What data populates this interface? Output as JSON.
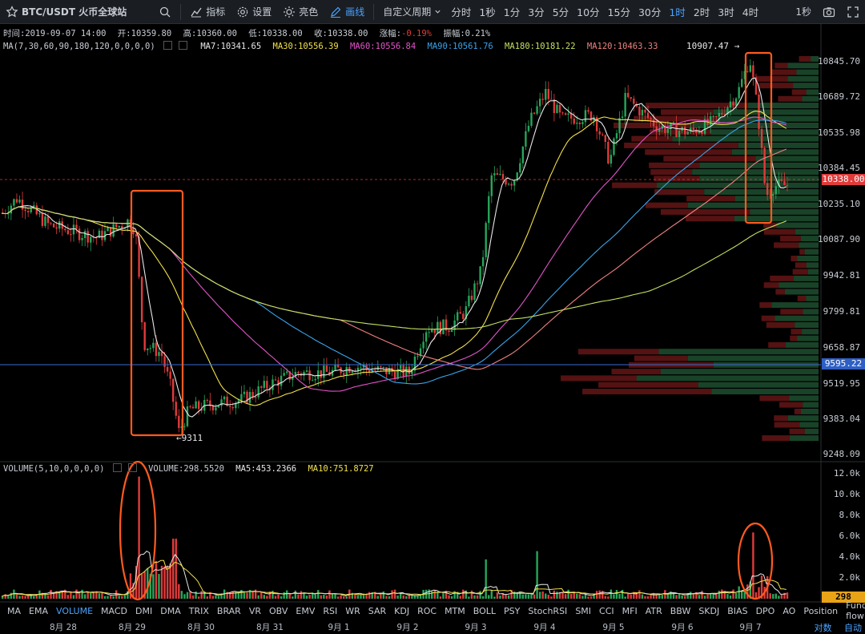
{
  "toolbar": {
    "pair": "BTC/USDT 火币全球站",
    "indicators": "指标",
    "settings": "设置",
    "brightness": "亮色",
    "drawing": "画线",
    "custom_period": "自定义周期",
    "periods": [
      "分时",
      "1秒",
      "1分",
      "3分",
      "5分",
      "10分",
      "15分",
      "30分",
      "1时",
      "2时",
      "3时",
      "4时"
    ],
    "active_period": "1时",
    "right_period": "1秒"
  },
  "ohlc": {
    "time": "时间:2019-09-07 14:00",
    "open": "开:10359.80",
    "high": "高:10360.00",
    "low": "低:10338.00",
    "close": "收:10338.00",
    "change": "-0.19%",
    "change_label": "涨幅:",
    "amplitude": "振幅:0.21%"
  },
  "ma_row": {
    "params": "MA(7,30,60,90,180,120,0,0,0,0)",
    "ma7": "MA7:10341.65",
    "ma30": "MA30:10556.39",
    "ma60": "MA60:10556.84",
    "ma90": "MA90:10561.76",
    "ma180": "MA180:10181.22",
    "ma120": "MA120:10463.33"
  },
  "volume_row": {
    "params": "VOLUME(5,10,0,0,0,0)",
    "volume": "VOLUME:298.5520",
    "ma5": "MA5:453.2366",
    "ma10": "MA10:751.8727"
  },
  "price_axis": [
    "10845.70",
    "10689.72",
    "10535.98",
    "10384.45",
    "10235.10",
    "10087.90",
    "9942.81",
    "9799.81",
    "9658.87",
    "9519.95",
    "9383.04",
    "9248.09"
  ],
  "current_price": "10338.00",
  "line_price": "9595.22",
  "high_marker": "10907.47 →",
  "low_marker": "←9311",
  "volume_axis": [
    "12.0k",
    "10.0k",
    "8.0k",
    "6.0k",
    "4.0k",
    "2.0k"
  ],
  "volume_current": "298",
  "indicators_bar": [
    "MA",
    "EMA",
    "VOLUME",
    "MACD",
    "DMI",
    "DMA",
    "TRIX",
    "BRAR",
    "VR",
    "OBV",
    "EMV",
    "RSI",
    "WR",
    "SAR",
    "KDJ",
    "ROC",
    "MTM",
    "BOLL",
    "PSY",
    "StochRSI",
    "SMI",
    "CCI",
    "MFI",
    "ATR",
    "BBW",
    "SKDJ",
    "BIAS",
    "DPO",
    "AO",
    "Position",
    "Fund-flow"
  ],
  "active_indicator": "VOLUME",
  "dates": [
    "8月 28",
    "8月 29",
    "8月 30",
    "8月 31",
    "9月 1",
    "9月 2",
    "9月 3",
    "9月 4",
    "9月 5",
    "9月 6",
    "9月 7"
  ],
  "bottom_right": {
    "log": "对数",
    "auto": "自动"
  },
  "colors": {
    "up": "#26a65b",
    "down": "#e03b3b",
    "ma7": "#e8e8e8",
    "ma30": "#f2e14a",
    "ma60": "#e055c8",
    "ma90": "#3aa4ea",
    "ma180": "#c4e060",
    "ma120": "#f08080",
    "annotation": "#ff5a1f",
    "accent": "#4aa3ff"
  }
}
